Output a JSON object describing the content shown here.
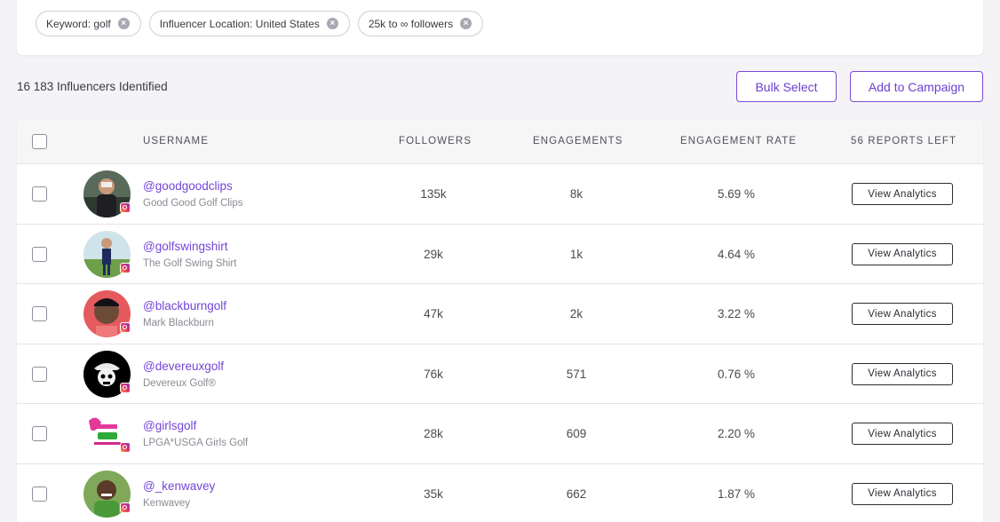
{
  "filters": [
    {
      "label": "Keyword: golf"
    },
    {
      "label": "Influencer Location: United States"
    },
    {
      "label": "25k to ∞ followers"
    }
  ],
  "summary": {
    "count_text": "16 183 Influencers Identified"
  },
  "actions": {
    "bulk_select": "Bulk Select",
    "add_to_campaign": "Add to Campaign"
  },
  "table": {
    "headers": {
      "username": "USERNAME",
      "followers": "FOLLOWERS",
      "engagements": "ENGAGEMENTS",
      "engagement_rate": "ENGAGEMENT RATE",
      "reports_left": "56 REPORTS LEFT"
    },
    "rows": [
      {
        "username": "@goodgoodclips",
        "display_name": "Good Good Golf Clips",
        "followers": "135k",
        "engagements": "8k",
        "engagement_rate": "5.69 %",
        "action": "View Analytics",
        "avatar_color": "#3d4a3e"
      },
      {
        "username": "@golfswingshirt",
        "display_name": "The Golf Swing Shirt",
        "followers": "29k",
        "engagements": "1k",
        "engagement_rate": "4.64 %",
        "action": "View Analytics",
        "avatar_color": "#7fae5c"
      },
      {
        "username": "@blackburngolf",
        "display_name": "Mark Blackburn",
        "followers": "47k",
        "engagements": "2k",
        "engagement_rate": "3.22 %",
        "action": "View Analytics",
        "avatar_color": "#e0565a"
      },
      {
        "username": "@devereuxgolf",
        "display_name": "Devereux Golf®",
        "followers": "76k",
        "engagements": "571",
        "engagement_rate": "0.76 %",
        "action": "View Analytics",
        "avatar_color": "#000000"
      },
      {
        "username": "@girlsgolf",
        "display_name": "LPGA*USGA Girls Golf",
        "followers": "28k",
        "engagements": "609",
        "engagement_rate": "2.20 %",
        "action": "View Analytics",
        "avatar_color": "#ffffff"
      },
      {
        "username": "@_kenwavey",
        "display_name": "Kenwavey",
        "followers": "35k",
        "engagements": "662",
        "engagement_rate": "1.87 %",
        "action": "View Analytics",
        "avatar_color": "#5b8a3c"
      }
    ]
  },
  "colors": {
    "accent": "#7446d8",
    "instagram": "#e1306c"
  }
}
